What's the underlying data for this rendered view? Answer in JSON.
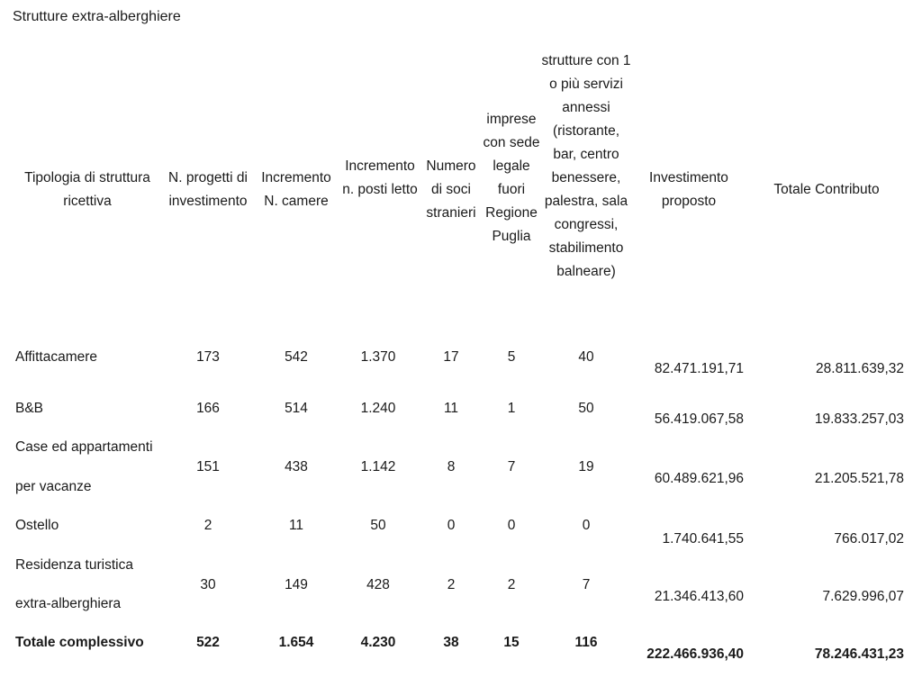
{
  "caption": "Strutture extra-alberghiere",
  "headers": [
    "Tipologia di struttura ricettiva",
    "N. progetti di investimento",
    "Incremento N. camere",
    "Incremento n. posti letto",
    "Numero di soci stranieri",
    "imprese con sede legale fuori Regione Puglia",
    "strutture con 1 o più servizi annessi (ristorante, bar, centro benessere, palestra, sala congressi, stabilimento balneare)",
    "Investimento proposto",
    "Totale Contributo"
  ],
  "rows": [
    {
      "label": [
        "Affittacamere"
      ],
      "progetti": "173",
      "camere": "542",
      "posti": "1.370",
      "soci": "17",
      "imprese": "5",
      "strutture": "40",
      "investimento": "82.471.191,71",
      "contributo": "28.811.639,32"
    },
    {
      "label": [
        "B&B"
      ],
      "progetti": "166",
      "camere": "514",
      "posti": "1.240",
      "soci": "11",
      "imprese": "1",
      "strutture": "50",
      "investimento": "56.419.067,58",
      "contributo": "19.833.257,03"
    },
    {
      "label": [
        "Case ed appartamenti",
        "per vacanze"
      ],
      "progetti": "151",
      "camere": "438",
      "posti": "1.142",
      "soci": "8",
      "imprese": "7",
      "strutture": "19",
      "investimento": "60.489.621,96",
      "contributo": "21.205.521,78"
    },
    {
      "label": [
        "Ostello"
      ],
      "progetti": "2",
      "camere": "11",
      "posti": "50",
      "soci": "0",
      "imprese": "0",
      "strutture": "0",
      "investimento": "1.740.641,55",
      "contributo": "766.017,02"
    },
    {
      "label": [
        "Residenza turistica",
        "extra-alberghiera"
      ],
      "progetti": "30",
      "camere": "149",
      "posti": "428",
      "soci": "2",
      "imprese": "2",
      "strutture": "7",
      "investimento": "21.346.413,60",
      "contributo": "7.629.996,07"
    }
  ],
  "total": {
    "label": "Totale complessivo",
    "progetti": "522",
    "camere": "1.654",
    "posti": "4.230",
    "soci": "38",
    "imprese": "15",
    "strutture": "116",
    "investimento": "222.466.936,40",
    "contributo": "78.246.431,23"
  }
}
